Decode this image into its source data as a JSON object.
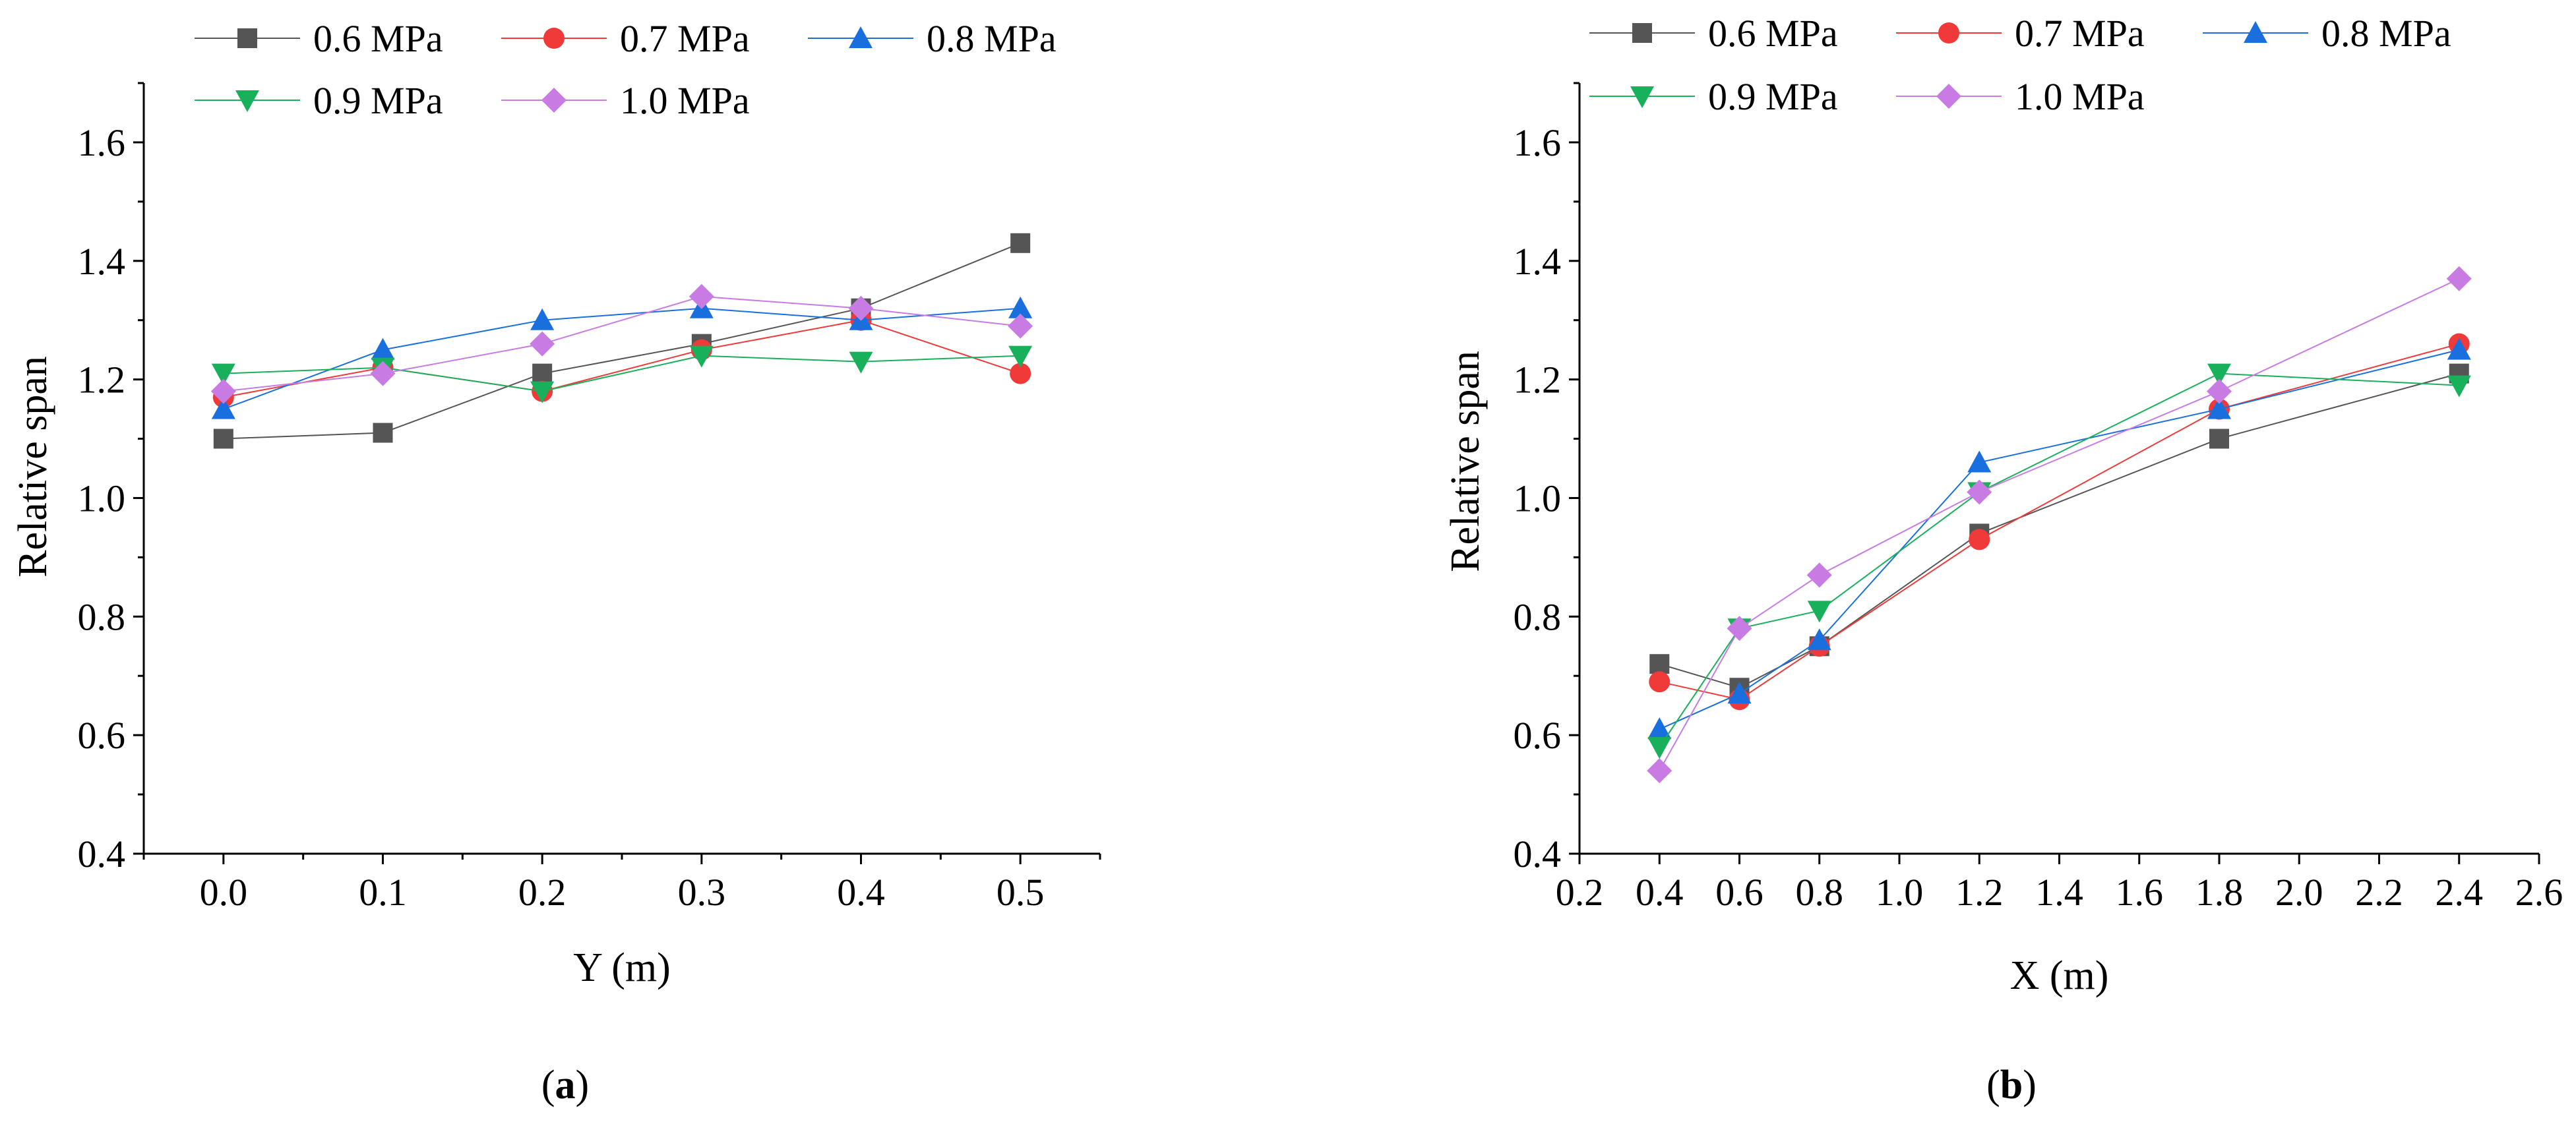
{
  "series_styles": [
    {
      "name": "0.6 MPa",
      "color": "#555555",
      "marker": "square"
    },
    {
      "name": "0.7 MPa",
      "color": "#f03a3a",
      "marker": "circle"
    },
    {
      "name": "0.8 MPa",
      "color": "#1a6fdf",
      "marker": "triangle-up"
    },
    {
      "name": "0.9 MPa",
      "color": "#18b05a",
      "marker": "triangle-down"
    },
    {
      "name": "1.0 MPa",
      "color": "#c77be3",
      "marker": "diamond"
    }
  ],
  "chart_data": [
    {
      "type": "line",
      "panel_label": "a",
      "xlabel": "Y (m)",
      "ylabel": "Relative span",
      "xlim": [
        -0.05,
        0.55
      ],
      "ylim": [
        0.4,
        1.7
      ],
      "xticks": [
        0.0,
        0.1,
        0.2,
        0.3,
        0.4,
        0.5
      ],
      "xtick_labels": [
        "0.0",
        "0.1",
        "0.2",
        "0.3",
        "0.4",
        "0.5"
      ],
      "yticks": [
        0.4,
        0.6,
        0.8,
        1.0,
        1.2,
        1.4,
        1.6
      ],
      "ytick_labels": [
        "0.4",
        "0.6",
        "0.8",
        "1.0",
        "1.2",
        "1.4",
        "1.6"
      ],
      "legend_position": "top",
      "x": [
        0.0,
        0.1,
        0.2,
        0.3,
        0.4,
        0.5
      ],
      "series": [
        {
          "name": "0.6 MPa",
          "values": [
            1.1,
            1.11,
            1.21,
            1.26,
            1.32,
            1.43
          ]
        },
        {
          "name": "0.7 MPa",
          "values": [
            1.17,
            1.22,
            1.18,
            1.25,
            1.3,
            1.21
          ]
        },
        {
          "name": "0.8 MPa",
          "values": [
            1.15,
            1.25,
            1.3,
            1.32,
            1.3,
            1.32
          ]
        },
        {
          "name": "0.9 MPa",
          "values": [
            1.21,
            1.22,
            1.18,
            1.24,
            1.23,
            1.24
          ]
        },
        {
          "name": "1.0 MPa",
          "values": [
            1.18,
            1.21,
            1.26,
            1.34,
            1.32,
            1.29
          ]
        }
      ]
    },
    {
      "type": "line",
      "panel_label": "b",
      "xlabel": "X (m)",
      "ylabel": "Relative span",
      "xlim": [
        0.2,
        2.6
      ],
      "ylim": [
        0.4,
        1.7
      ],
      "xticks": [
        0.2,
        0.4,
        0.6,
        0.8,
        1.0,
        1.2,
        1.4,
        1.6,
        1.8,
        2.0,
        2.2,
        2.4,
        2.6
      ],
      "xtick_labels": [
        "0.2",
        "0.4",
        "0.6",
        "0.8",
        "1.0",
        "1.2",
        "1.4",
        "1.6",
        "1.8",
        "2.0",
        "2.2",
        "2.4",
        "2.6"
      ],
      "yticks": [
        0.4,
        0.6,
        0.8,
        1.0,
        1.2,
        1.4,
        1.6
      ],
      "ytick_labels": [
        "0.4",
        "0.6",
        "0.8",
        "1.0",
        "1.2",
        "1.4",
        "1.6"
      ],
      "legend_position": "top",
      "x": [
        0.4,
        0.6,
        0.8,
        1.2,
        1.8,
        2.4
      ],
      "series": [
        {
          "name": "0.6 MPa",
          "values": [
            0.72,
            0.68,
            0.75,
            0.94,
            1.1,
            1.21
          ]
        },
        {
          "name": "0.7 MPa",
          "values": [
            0.69,
            0.66,
            0.75,
            0.93,
            1.15,
            1.26
          ]
        },
        {
          "name": "0.8 MPa",
          "values": [
            0.61,
            0.67,
            0.76,
            1.06,
            1.15,
            1.25
          ]
        },
        {
          "name": "0.9 MPa",
          "values": [
            0.58,
            0.78,
            0.81,
            1.01,
            1.21,
            1.19
          ]
        },
        {
          "name": "1.0 MPa",
          "values": [
            0.54,
            0.78,
            0.87,
            1.01,
            1.18,
            1.37
          ]
        }
      ]
    }
  ]
}
